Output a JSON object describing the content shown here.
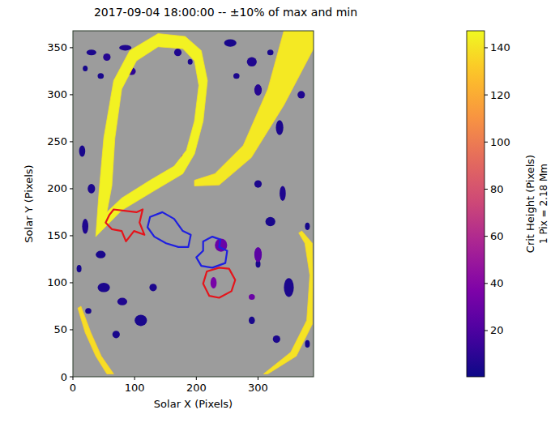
{
  "chart_data": {
    "type": "heatmap",
    "title": "2017-09-04 18:00:00 -- ±10% of max and min",
    "x_label": "Solar X (Pixels)",
    "y_label": "Solar Y (Pixels)",
    "xlim": [
      0,
      390
    ],
    "ylim": [
      0,
      368
    ],
    "xticks": [
      0,
      100,
      200,
      300
    ],
    "yticks": [
      0,
      50,
      100,
      150,
      200,
      250,
      300,
      350
    ],
    "colorbar": {
      "label": "Crit Height (Pixels)",
      "sublabel": "1 Pix = 2.18 Mm",
      "range": [
        0.4,
        147.2
      ],
      "ticks": [
        20,
        40,
        60,
        80,
        100,
        120,
        140
      ]
    },
    "regions": [
      {
        "value": 145,
        "x": [
          37,
          42,
          50,
          66,
          92,
          138,
          182,
          208,
          218,
          211,
          197,
          178,
          132,
          79,
          46
        ],
        "y": [
          149,
          194,
          254,
          315,
          347,
          365,
          362,
          347,
          315,
          272,
          237,
          216,
          198,
          177,
          155
        ],
        "hole_x": [
          63,
          68,
          79,
          103,
          138,
          178,
          197,
          204,
          197,
          184,
          164,
          125,
          79,
          55
        ],
        "hole_y": [
          203,
          254,
          306,
          336,
          351,
          349,
          336,
          310,
          272,
          241,
          224,
          209,
          190,
          175
        ]
      },
      {
        "value": 142,
        "x": [
          342,
          316,
          276,
          230,
          197,
          197,
          237,
          289,
          342,
          390,
          390
        ],
        "y": [
          368,
          306,
          246,
          216,
          209,
          203,
          204,
          233,
          289,
          349,
          368
        ]
      },
      {
        "value": 140,
        "x": [
          371,
          388,
          389,
          388,
          362,
          316,
          309,
          353,
          379,
          384,
          376,
          366
        ],
        "y": [
          155,
          142,
          108,
          56,
          22,
          3,
          3,
          26,
          60,
          108,
          142,
          153
        ]
      },
      {
        "value": 138,
        "x": [
          13,
          29,
          46,
          66,
          55,
          37,
          20,
          8
        ],
        "y": [
          75,
          47,
          22,
          3,
          3,
          22,
          47,
          73
        ]
      }
    ],
    "patches": {
      "x": [
        30,
        55,
        85,
        45,
        95,
        20,
        170,
        190,
        255,
        290,
        300,
        265,
        320,
        335,
        370,
        15,
        30,
        20,
        45,
        10,
        50,
        80,
        110,
        130,
        70,
        25,
        300,
        340,
        320,
        350,
        380,
        290,
        330,
        380,
        300,
        240,
        300,
        228,
        290,
        50,
        178
      ],
      "y": [
        345,
        340,
        350,
        320,
        325,
        328,
        345,
        335,
        355,
        335,
        305,
        320,
        345,
        265,
        300,
        240,
        200,
        160,
        130,
        115,
        95,
        80,
        60,
        95,
        45,
        70,
        205,
        195,
        165,
        95,
        160,
        60,
        40,
        35,
        120,
        140,
        130,
        100,
        85,
        172,
        230
      ],
      "rx": [
        8,
        6,
        10,
        5,
        7,
        4,
        6,
        4,
        10,
        8,
        6,
        5,
        5,
        6,
        6,
        5,
        6,
        5,
        8,
        4,
        10,
        8,
        10,
        6,
        6,
        5,
        6,
        5,
        8,
        8,
        4,
        5,
        6,
        4,
        4,
        10,
        6,
        5,
        5,
        5,
        4
      ],
      "ry": [
        3,
        4,
        3,
        3,
        4,
        3,
        4,
        3,
        4,
        5,
        6,
        3,
        3,
        8,
        4,
        6,
        5,
        8,
        4,
        4,
        5,
        4,
        6,
        4,
        4,
        3,
        4,
        8,
        5,
        10,
        4,
        4,
        4,
        4,
        4,
        7,
        8,
        6,
        3,
        7,
        6
      ],
      "values": [
        5,
        8,
        6,
        4,
        10,
        3,
        6,
        5,
        4,
        6,
        8,
        5,
        4,
        5,
        6,
        4,
        5,
        6,
        4,
        3,
        5,
        6,
        4,
        5,
        4,
        4,
        5,
        6,
        4,
        5,
        3,
        4,
        5,
        3,
        4,
        30,
        25,
        35,
        30,
        30,
        35
      ]
    },
    "contours": [
      {
        "color": "#e5141b",
        "x": [
          66,
          103,
          113,
          108,
          116,
          99,
          86,
          79,
          63,
          53,
          59
        ],
        "y": [
          178,
          175,
          178,
          164,
          151,
          155,
          144,
          155,
          157,
          164,
          172
        ]
      },
      {
        "color": "#1f1fe0",
        "x": [
          125,
          145,
          164,
          178,
          191,
          187,
          171,
          151,
          132,
          121
        ],
        "y": [
          170,
          175,
          168,
          155,
          151,
          138,
          138,
          142,
          149,
          159
        ]
      },
      {
        "color": "#e5141b",
        "x": [
          217,
          237,
          253,
          263,
          257,
          237,
          221,
          211
        ],
        "y": [
          112,
          116,
          115,
          103,
          91,
          84,
          86,
          99
        ]
      },
      {
        "color": "#1f1fe0",
        "x": [
          211,
          226,
          239,
          237,
          250,
          247,
          226,
          208,
          200,
          211
        ],
        "y": [
          144,
          149,
          146,
          138,
          134,
          121,
          116,
          118,
          127,
          134
        ]
      }
    ]
  }
}
